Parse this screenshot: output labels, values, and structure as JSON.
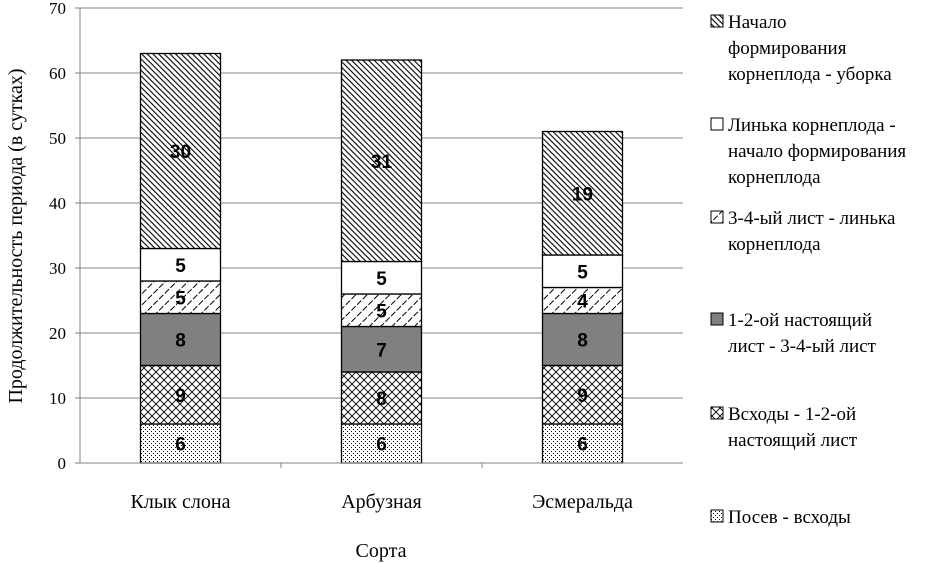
{
  "chart_data": {
    "type": "bar",
    "stacked": true,
    "categories": [
      "Клык слона",
      "Арбузная",
      "Эсмеральда"
    ],
    "xlabel": "Сорта",
    "ylabel": "Продолжительность периода (в сутках)",
    "ylim": [
      0,
      70
    ],
    "yticks": [
      0,
      10,
      20,
      30,
      40,
      50,
      60,
      70
    ],
    "grid": true,
    "legend_position": "right",
    "series": [
      {
        "name": "Посев - всходы",
        "values": [
          6,
          6,
          6
        ],
        "pattern": "dots"
      },
      {
        "name": "Всходы - 1-2-ой настоящий лист",
        "values": [
          9,
          8,
          9
        ],
        "pattern": "crosshatch"
      },
      {
        "name": "1-2-ой настоящий лист - 3-4-ый лист",
        "values": [
          8,
          7,
          8
        ],
        "pattern": "solid",
        "color": "#808080"
      },
      {
        "name": "3-4-ый лист - линька корнеплода",
        "values": [
          5,
          5,
          4
        ],
        "pattern": "diagonal-light"
      },
      {
        "name": "Линька корнеплода - начало формирования корнеплода",
        "values": [
          5,
          5,
          5
        ],
        "pattern": "none"
      },
      {
        "name": "Начало формирования корнеплода - уборка",
        "values": [
          30,
          31,
          19
        ],
        "pattern": "diagonal-dense"
      }
    ]
  },
  "legend": {
    "items": [
      [
        "Начало",
        "формирования",
        "корнеплода - уборка"
      ],
      [
        "Линька корнеплода -",
        "начало формирования",
        "корнеплода"
      ],
      [
        "3-4-ый лист - линька",
        "корнеплода"
      ],
      [
        "1-2-ой настоящий",
        "лист - 3-4-ый лист"
      ],
      [
        "Всходы - 1-2-ой",
        "настоящий лист"
      ],
      [
        "Посев - всходы"
      ]
    ]
  }
}
